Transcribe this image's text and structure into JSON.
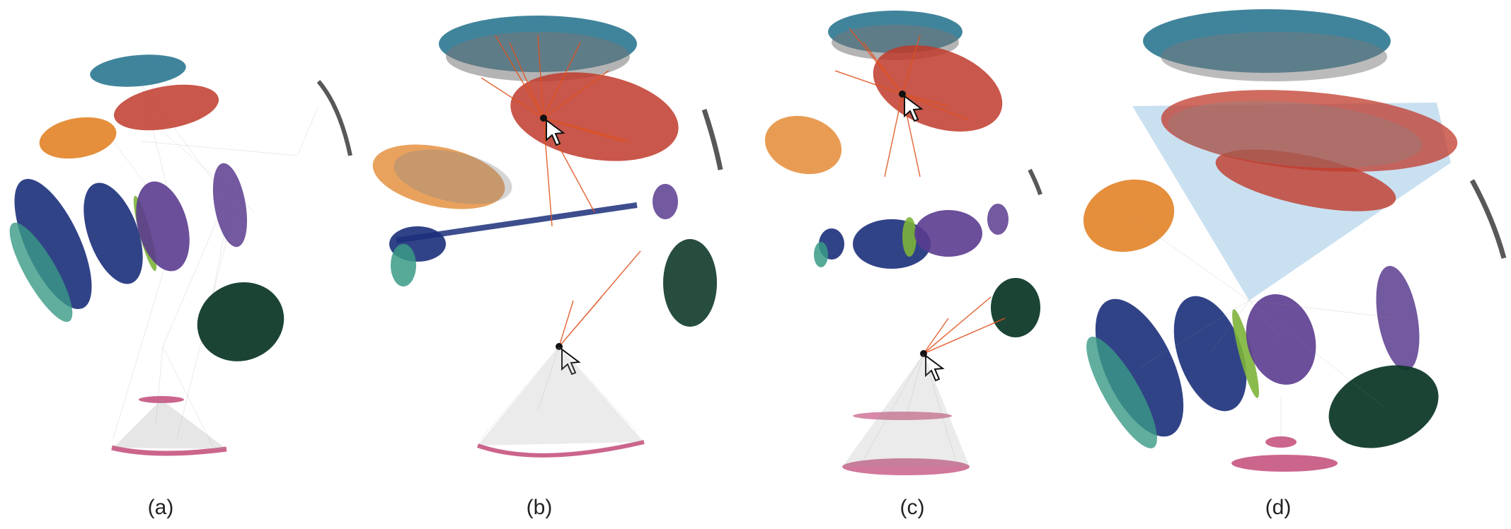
{
  "panels": [
    {
      "caption": "(a)",
      "clusters": [
        {
          "color": "teal-blue",
          "hex": "#1f6f8b"
        },
        {
          "color": "red",
          "hex": "#c0392b"
        },
        {
          "color": "orange",
          "hex": "#e07b1a"
        },
        {
          "color": "navy",
          "hex": "#1b2f7a"
        },
        {
          "color": "sea-green",
          "hex": "#3a9a86"
        },
        {
          "color": "purple",
          "hex": "#5b3c8f"
        },
        {
          "color": "lime-green",
          "hex": "#7db43a"
        },
        {
          "color": "dark-green",
          "hex": "#0f3a2a"
        },
        {
          "color": "charcoal",
          "hex": "#3b3b3b"
        },
        {
          "color": "pink",
          "hex": "#c24a78"
        }
      ]
    },
    {
      "caption": "(b)",
      "pointer": "cursor-arrow-icon",
      "highlight_edges_color": "#e0521d"
    },
    {
      "caption": "(c)",
      "pointer": "cursor-arrow-icon",
      "highlight_edges_color": "#e0521d"
    },
    {
      "caption": "(d)",
      "selection_region_color": "#bcd8ee"
    }
  ],
  "edge_color": "#8a8a8a"
}
